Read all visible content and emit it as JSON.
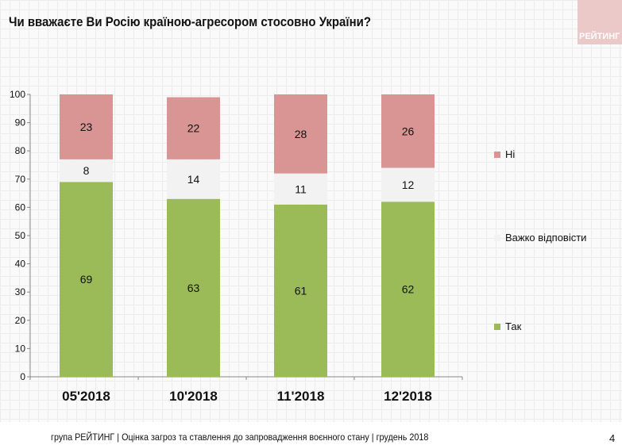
{
  "title": "Чи вважаєте Ви Росію країною-агресором стосовно України?",
  "logo": "РЕЙТИНГ",
  "footer": "група РЕЙТИНГ | Оцінка загроз та ставлення до запровадження воєнного стану | грудень 2018",
  "page_number": "4",
  "chart_data": {
    "type": "bar",
    "stacked": true,
    "categories": [
      "05'2018",
      "10'2018",
      "11'2018",
      "12'2018"
    ],
    "series": [
      {
        "name": "Так",
        "values": [
          69,
          63,
          61,
          62
        ],
        "color": "#9bbb59"
      },
      {
        "name": "Важко відповісти",
        "values": [
          8,
          14,
          11,
          12
        ],
        "color": "#f2f2f2"
      },
      {
        "name": "Ні",
        "values": [
          23,
          22,
          28,
          26
        ],
        "color": "#d99594"
      }
    ],
    "ylim": [
      0,
      100
    ],
    "yticks": [
      0,
      10,
      20,
      30,
      40,
      50,
      60,
      70,
      80,
      90,
      100
    ],
    "legend": "right"
  }
}
